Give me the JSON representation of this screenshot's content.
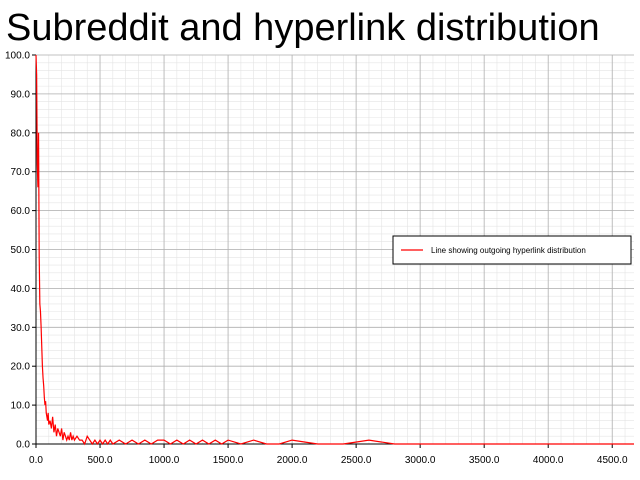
{
  "chart_data": {
    "type": "line",
    "title": "Subreddit and hyperlink distribution",
    "xlabel": "",
    "ylabel": "",
    "xlim": [
      0,
      4670
    ],
    "ylim": [
      0,
      100
    ],
    "xticks": [
      0,
      500,
      1000,
      1500,
      2000,
      2500,
      3000,
      3500,
      4000,
      4500
    ],
    "yticks": [
      0,
      10,
      20,
      30,
      40,
      50,
      60,
      70,
      80,
      90,
      100
    ],
    "xtick_labels": [
      "0.0",
      "500.0",
      "1000.0",
      "1500.0",
      "2000.0",
      "2500.0",
      "3000.0",
      "3500.0",
      "4000.0",
      "4500.0"
    ],
    "ytick_labels": [
      "0.0",
      "10.0",
      "20.0",
      "30.0",
      "40.0",
      "50.0",
      "60.0",
      "70.0",
      "80.0",
      "90.0",
      "100.0"
    ],
    "grid": true,
    "minor_grid": true,
    "legend_position": "center-right",
    "series": [
      {
        "name": "Line showing outgoing hyperlink distribution",
        "color": "#ff0000",
        "x": [
          0,
          5,
          10,
          15,
          20,
          25,
          30,
          35,
          40,
          45,
          50,
          55,
          60,
          65,
          70,
          75,
          80,
          85,
          90,
          95,
          100,
          110,
          120,
          130,
          140,
          150,
          160,
          170,
          180,
          190,
          200,
          210,
          220,
          230,
          240,
          250,
          260,
          270,
          280,
          290,
          300,
          320,
          340,
          360,
          380,
          400,
          420,
          440,
          460,
          480,
          500,
          520,
          540,
          560,
          580,
          600,
          650,
          700,
          750,
          800,
          850,
          900,
          950,
          1000,
          1050,
          1100,
          1150,
          1200,
          1250,
          1300,
          1350,
          1400,
          1450,
          1500,
          1600,
          1700,
          1800,
          1900,
          2000,
          2200,
          2400,
          2600,
          2800,
          3000,
          3500,
          4000,
          4500,
          4670
        ],
        "y": [
          100,
          95,
          72,
          66,
          80,
          48,
          36,
          34,
          30,
          25,
          20,
          17,
          15,
          12,
          10,
          11,
          8,
          7,
          6,
          8,
          5,
          6,
          4,
          7,
          3,
          5,
          2,
          4,
          3,
          2,
          4,
          1,
          3,
          2,
          1,
          2,
          1,
          3,
          1,
          2,
          1,
          2,
          1,
          1,
          0,
          2,
          1,
          0,
          1,
          0,
          1,
          0,
          1,
          0,
          1,
          0,
          1,
          0,
          1,
          0,
          1,
          0,
          1,
          1,
          0,
          1,
          0,
          1,
          0,
          1,
          0,
          1,
          0,
          1,
          0,
          1,
          0,
          0,
          1,
          0,
          0,
          1,
          0,
          0,
          0,
          0,
          0,
          0
        ]
      }
    ]
  }
}
